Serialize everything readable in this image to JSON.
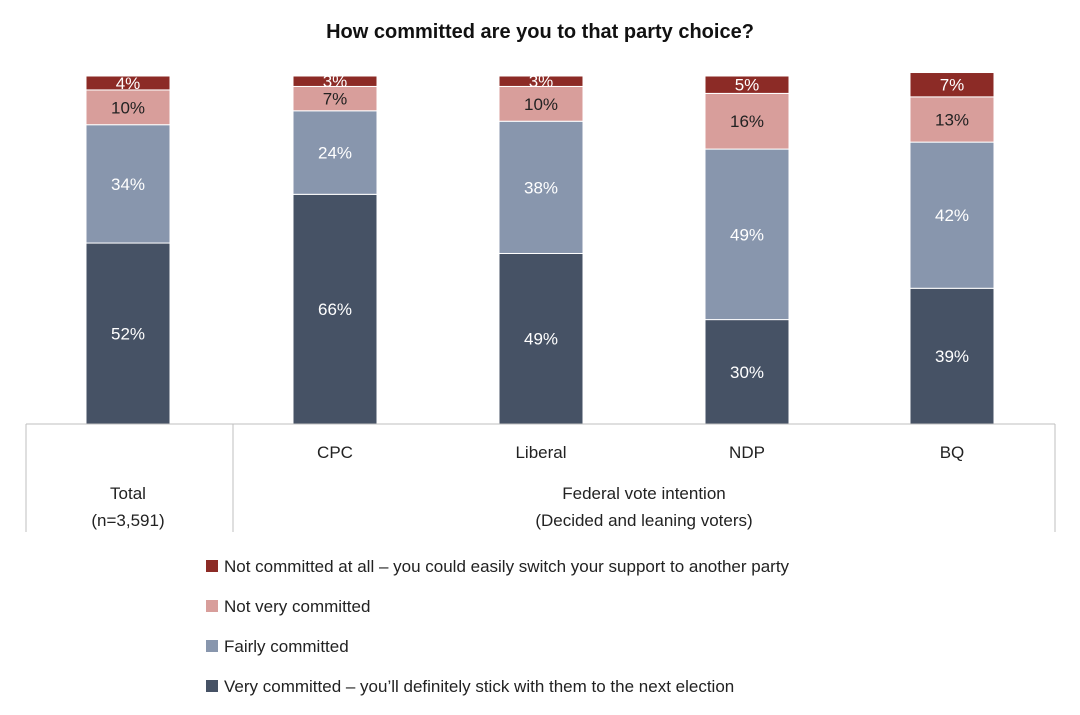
{
  "chart_data": {
    "type": "bar",
    "stacked": true,
    "title": "How committed are you to that party choice?",
    "categories": [
      "Total",
      "CPC",
      "Liberal",
      "NDP",
      "BQ"
    ],
    "total_group": {
      "label": "Total",
      "sublabel": "(n=3,591)"
    },
    "group": {
      "label": "Federal vote intention",
      "sublabel": "(Decided and leaning voters)"
    },
    "series": [
      {
        "name": "Very committed – you’ll definitely stick with them to the next election",
        "color": "#465265",
        "label_color": "#ffffff",
        "values": [
          52,
          66,
          49,
          30,
          39
        ],
        "labels": [
          "52%",
          "66%",
          "49%",
          "30%",
          "39%"
        ]
      },
      {
        "name": "Fairly committed",
        "color": "#8896ad",
        "label_color": "#ffffff",
        "values": [
          34,
          24,
          38,
          49,
          42
        ],
        "labels": [
          "34%",
          "24%",
          "38%",
          "49%",
          "42%"
        ]
      },
      {
        "name": "Not very committed",
        "color": "#d89e9b",
        "label_color": "#222222",
        "values": [
          10,
          7,
          10,
          16,
          13
        ],
        "labels": [
          "10%",
          "7%",
          "10%",
          "16%",
          "13%"
        ]
      },
      {
        "name": "Not committed at all – you could easily switch your support to another party",
        "color": "#8c2b26",
        "label_color": "#ffffff",
        "values": [
          4,
          3,
          3,
          5,
          7
        ],
        "labels": [
          "4%",
          "3%",
          "3%",
          "5%",
          "7%"
        ]
      }
    ],
    "legend_order": [
      3,
      2,
      1,
      0
    ],
    "legend_position": "bottom-left",
    "grid": false
  }
}
